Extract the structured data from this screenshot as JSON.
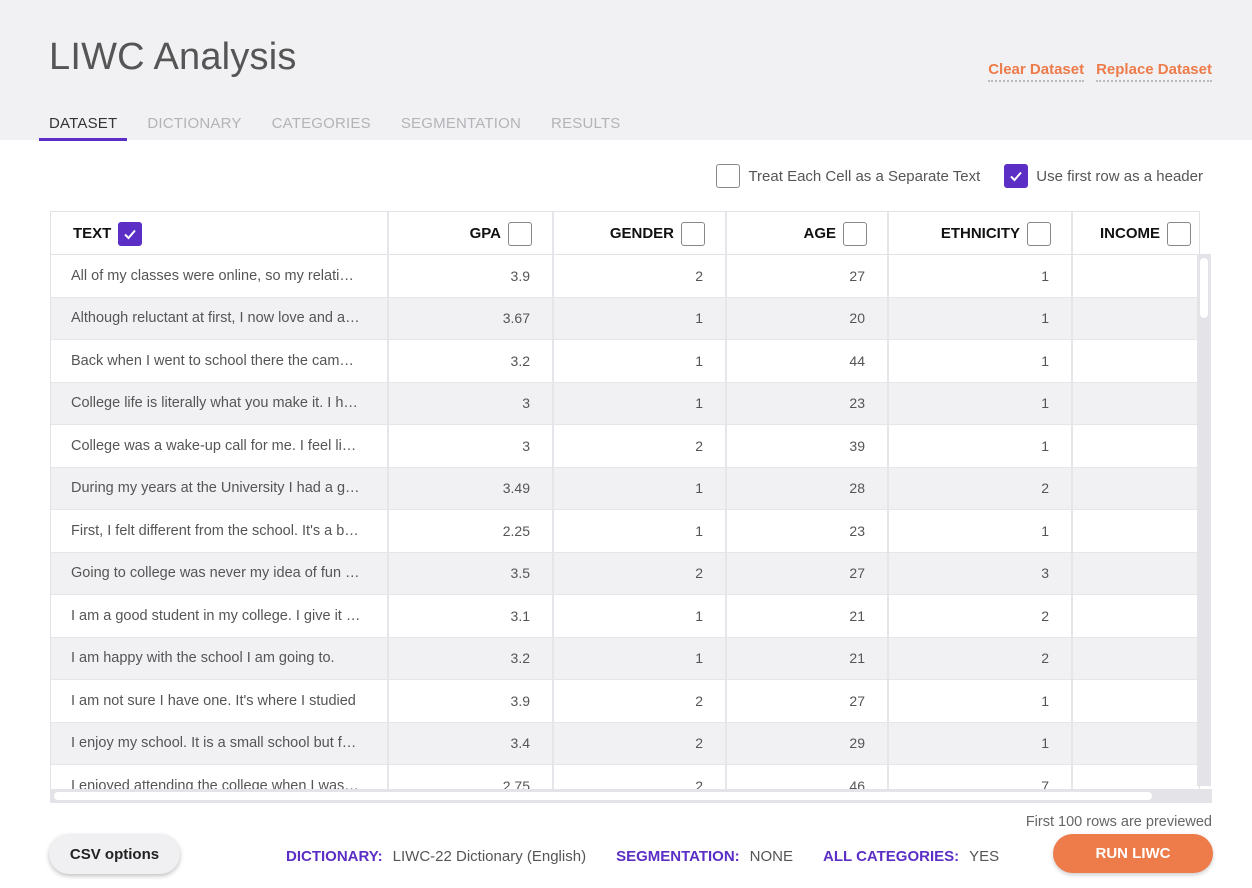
{
  "app": {
    "title": "LIWC Analysis"
  },
  "header": {
    "clear_dataset": "Clear Dataset",
    "replace_dataset": "Replace Dataset"
  },
  "tabs": [
    {
      "label": "DATASET",
      "active": true
    },
    {
      "label": "DICTIONARY",
      "active": false
    },
    {
      "label": "CATEGORIES",
      "active": false
    },
    {
      "label": "SEGMENTATION",
      "active": false
    },
    {
      "label": "RESULTS",
      "active": false
    }
  ],
  "options": {
    "separate_text": {
      "label": "Treat Each Cell as a Separate Text",
      "checked": false
    },
    "first_row_header": {
      "label": "Use first row as a header",
      "checked": true
    }
  },
  "table": {
    "columns": [
      {
        "label": "TEXT",
        "checked": true
      },
      {
        "label": "GPA",
        "checked": false
      },
      {
        "label": "GENDER",
        "checked": false
      },
      {
        "label": "AGE",
        "checked": false
      },
      {
        "label": "ETHNICITY",
        "checked": false
      },
      {
        "label": "INCOME",
        "checked": false
      }
    ],
    "rows": [
      [
        "All of my classes were online, so my relationship with the school was limited",
        "3.9",
        "2",
        "27",
        "1",
        ""
      ],
      [
        "Although reluctant at first, I now love and appreciate the school",
        "3.67",
        "1",
        "20",
        "1",
        ""
      ],
      [
        "Back when I went to school there  the campus was different",
        "3.2",
        "1",
        "44",
        "1",
        ""
      ],
      [
        "College life is literally what you make it. I had fun",
        "3",
        "1",
        "23",
        "1",
        ""
      ],
      [
        "College was a wake-up call for me.  I feel like I grew up",
        "3",
        "2",
        "39",
        "1",
        ""
      ],
      [
        "During my years at the University I had a great time",
        "3.49",
        "1",
        "28",
        "2",
        ""
      ],
      [
        "First, I felt different from the school. It's a big place",
        "2.25",
        "1",
        "23",
        "1",
        ""
      ],
      [
        "Going to college was never my idea of fun at all",
        "3.5",
        "2",
        "27",
        "3",
        ""
      ],
      [
        "I am a good student in my college. I give it my best",
        "3.1",
        "1",
        "21",
        "2",
        ""
      ],
      [
        "I am happy with the school I am going to.",
        "3.2",
        "1",
        "21",
        "2",
        ""
      ],
      [
        "I am not sure I have one. It's where I studied",
        "3.9",
        "2",
        "27",
        "1",
        ""
      ],
      [
        "I enjoy my school. It is a small school but friendly",
        "3.4",
        "2",
        "29",
        "1",
        ""
      ],
      [
        "I enjoyed attending the college when I was younger",
        "2.75",
        "2",
        "46",
        "7",
        ""
      ]
    ]
  },
  "footer": {
    "preview_note": "First 100 rows are previewed",
    "csv_options": "CSV options",
    "dictionary_label": "DICTIONARY:",
    "dictionary_value": "LIWC-22 Dictionary (English)",
    "segmentation_label": "SEGMENTATION:",
    "segmentation_value": "NONE",
    "categories_label": "ALL CATEGORIES:",
    "categories_value": "YES",
    "run_label": "RUN LIWC"
  },
  "colors": {
    "accent": "#5b2fc5",
    "action": "#ee7b4a"
  }
}
